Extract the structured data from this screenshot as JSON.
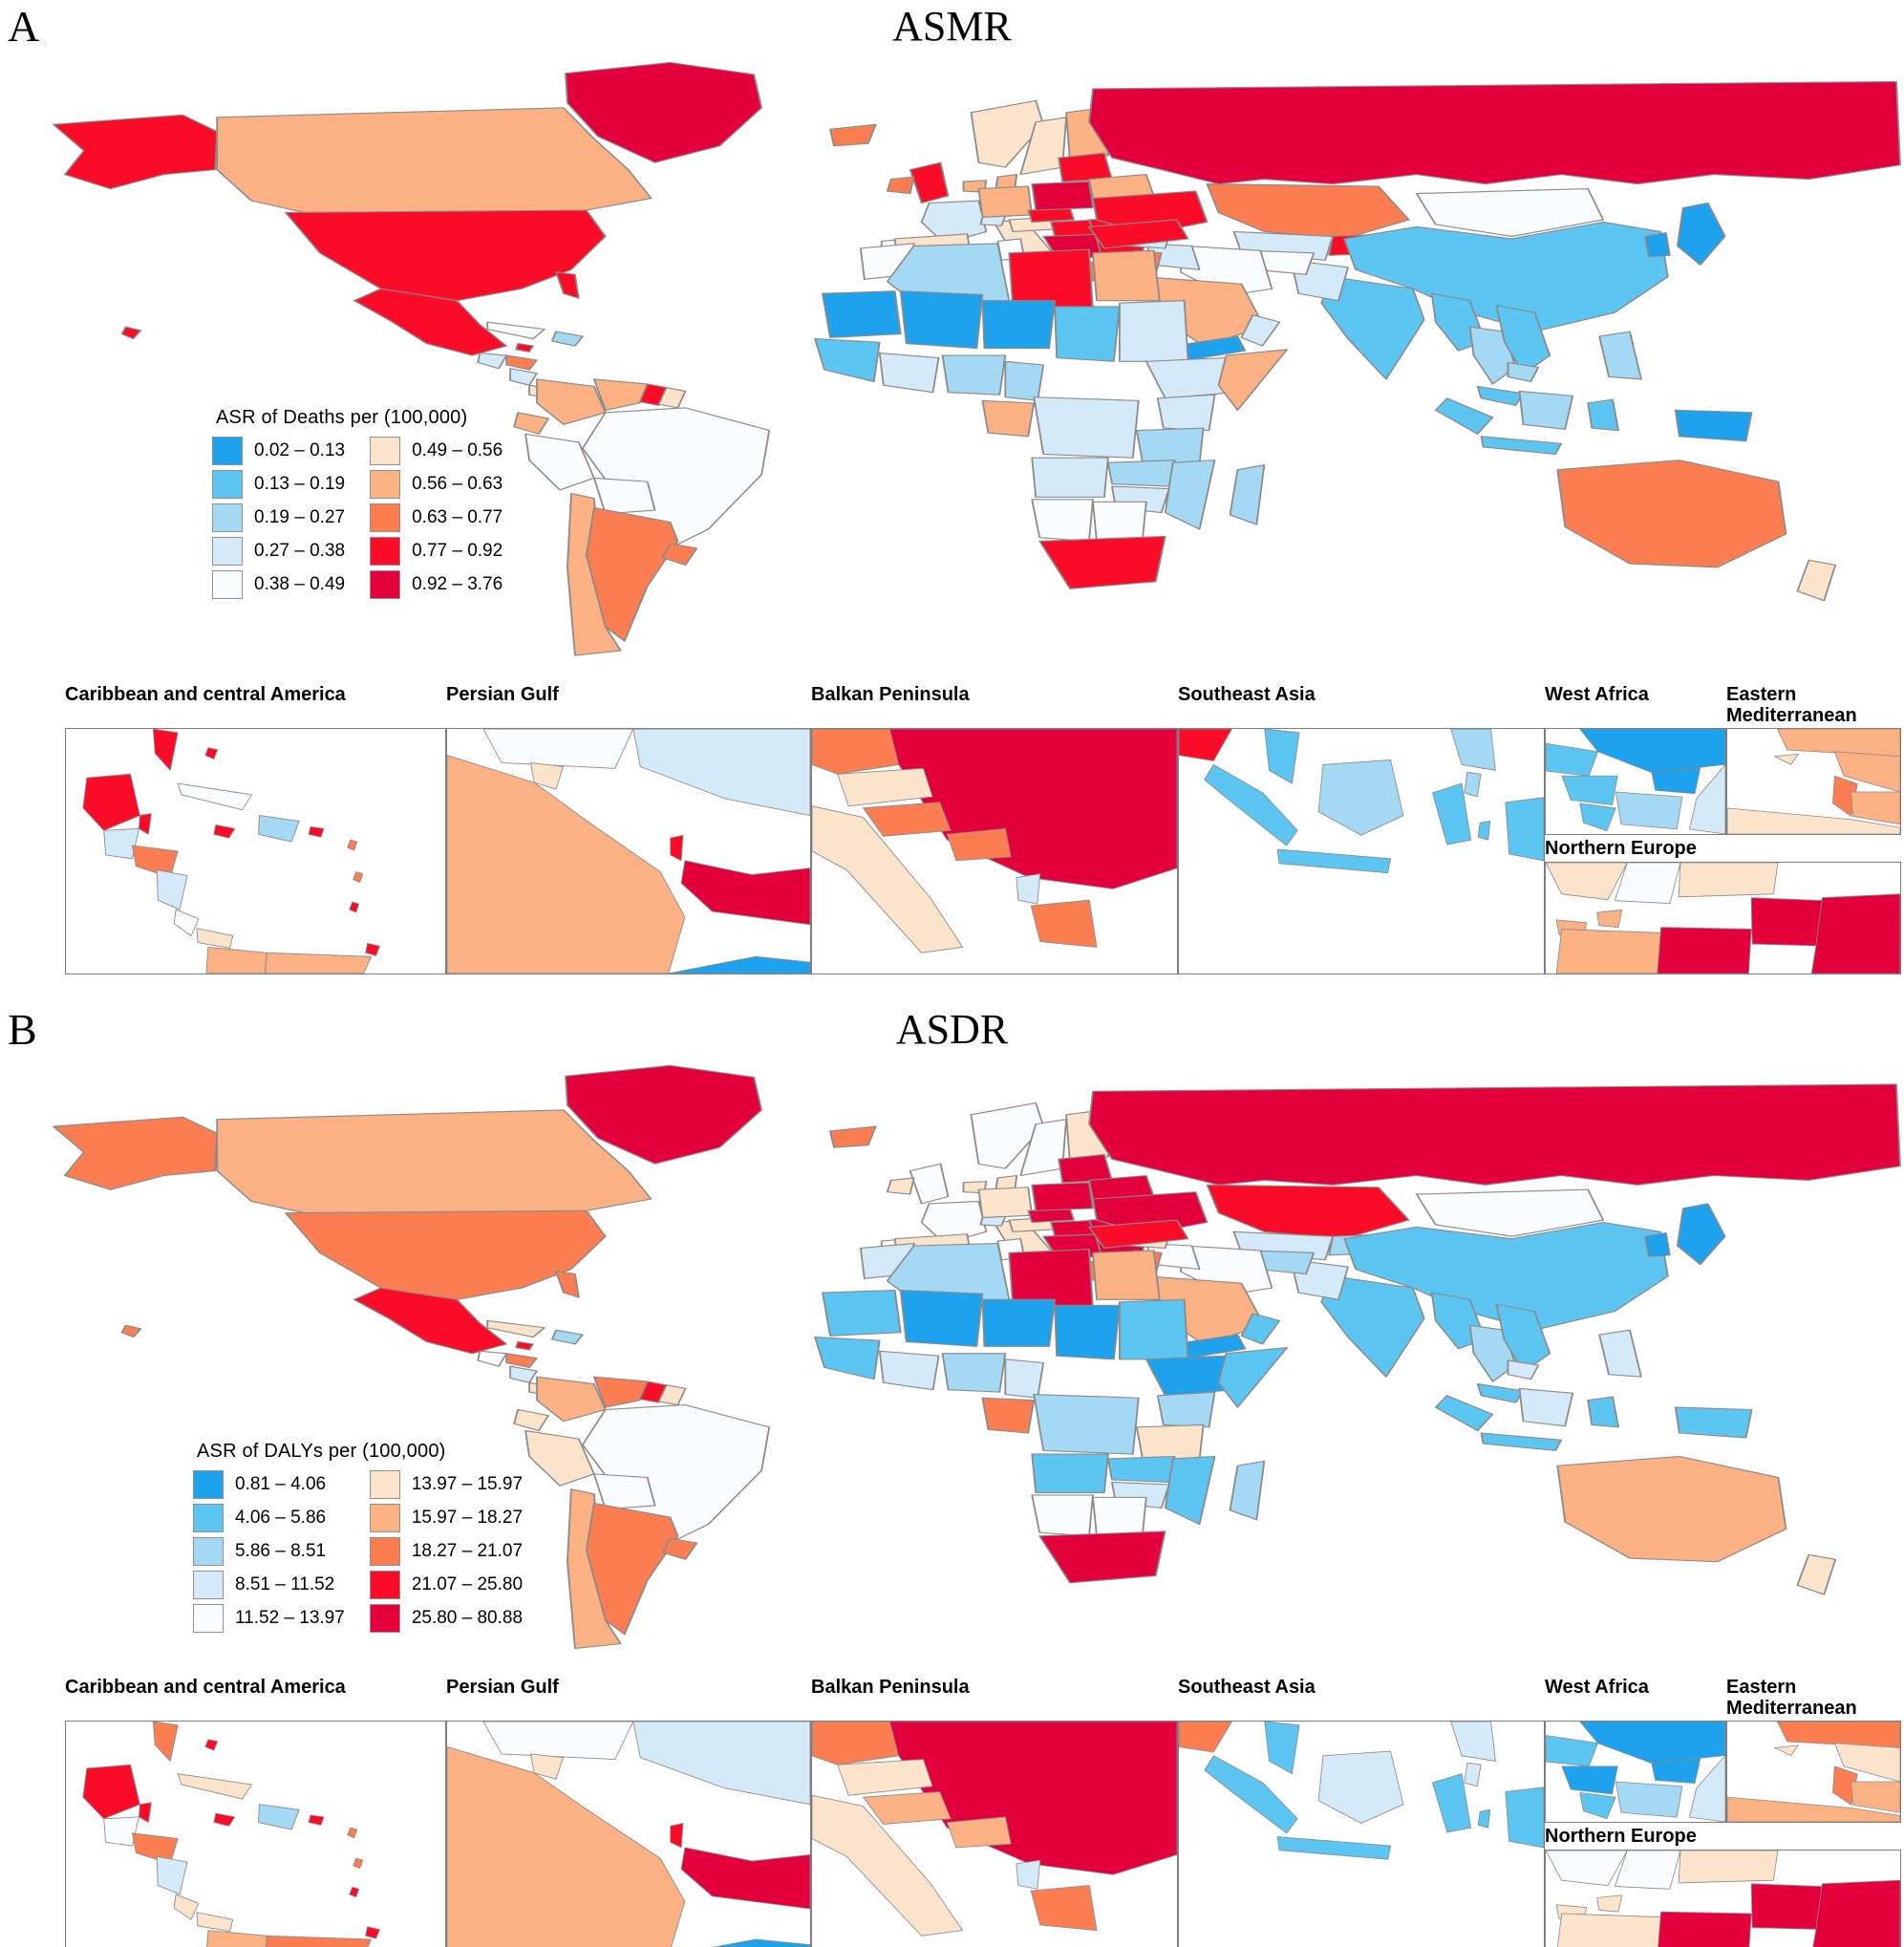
{
  "palette": [
    "#1EA2EE",
    "#5CC5F2",
    "#A5D8F3",
    "#D5EAF8",
    "#FBFCFD",
    "#FBE3CC",
    "#FBB183",
    "#FB7E52",
    "#FA0B27",
    "#E4003C"
  ],
  "map_border_color": "#8a8a8a",
  "panels": [
    {
      "letter": "A",
      "title": "ASMR",
      "legend": {
        "title": "ASR of Deaths per (100,000)",
        "left_items": [
          {
            "range": "0.02 – 0.13",
            "bucket": 1
          },
          {
            "range": "0.13 – 0.19",
            "bucket": 2
          },
          {
            "range": "0.19 – 0.27",
            "bucket": 3
          },
          {
            "range": "0.27 – 0.38",
            "bucket": 4
          },
          {
            "range": "0.38 – 0.49",
            "bucket": 5
          }
        ],
        "right_items": [
          {
            "range": "0.49 – 0.56",
            "bucket": 6
          },
          {
            "range": "0.56 – 0.63",
            "bucket": 7
          },
          {
            "range": "0.63 – 0.77",
            "bucket": 8
          },
          {
            "range": "0.77 – 0.92",
            "bucket": 9
          },
          {
            "range": "0.92 – 3.76",
            "bucket": 10
          }
        ]
      },
      "map_regions": {
        "greenland": 10,
        "alaska": 9,
        "canada": 7,
        "usa": 9,
        "florida": 9,
        "hawaii": 9,
        "mexico": 9,
        "guatemala": 4,
        "honduras": 8,
        "nicaragua": 4,
        "costarica_panama": 6,
        "cuba": 5,
        "hispaniola": 3,
        "jamaica": 9,
        "colombia": 7,
        "venezuela": 7,
        "guyana": 9,
        "suriname": 6,
        "ecuador": 7,
        "peru": 5,
        "brazil": 5,
        "bolivia": 5,
        "paraguay": 5,
        "chile": 7,
        "argentina": 8,
        "uruguay": 8,
        "iceland": 8,
        "uk": 9,
        "ireland": 8,
        "norway": 6,
        "sweden": 6,
        "finland": 7,
        "denmark": 7,
        "germany": 7,
        "netherlands": 7,
        "france": 4,
        "spain": 6,
        "portugal": 5,
        "italy": 6,
        "switzerland": 4,
        "austria": 6,
        "czech": 9,
        "poland": 10,
        "hungary_slovakia": 9,
        "balkans_serbia": 10,
        "albania": 4,
        "greece": 8,
        "romania": 9,
        "bulgaria": 9,
        "baltics": 9,
        "belarus": 7,
        "ukraine": 9,
        "russia": 10,
        "kazakhstan": 8,
        "centralasia": 4,
        "kyrgyz_tajik": 9,
        "mongolia": 5,
        "china": 2,
        "japan": 1,
        "korea": 1,
        "india": 2,
        "pakistan": 4,
        "afghanistan": 5,
        "iran": 5,
        "iraq": 4,
        "syria": 4,
        "turkey": 9,
        "saudi": 7,
        "yemen": 1,
        "oman": 4,
        "israel_jordan": 8,
        "myanmar": 2,
        "thailand": 3,
        "laos_vietnam": 2,
        "cambodia": 3,
        "malaysia": 2,
        "sumatra": 2,
        "java": 2,
        "borneo": 3,
        "sulawesi": 2,
        "philippines": 3,
        "png": 1,
        "australia": 8,
        "nz": 6,
        "morocco": 5,
        "algeria": 3,
        "tunisia": 5,
        "libya": 9,
        "egypt": 7,
        "mauritania": 1,
        "mali": 1,
        "niger": 1,
        "chad": 2,
        "sudan": 4,
        "senegal_guinea": 2,
        "ivory_ghana": 4,
        "nigeria": 3,
        "cameroon": 3,
        "ethiopia": 4,
        "somalia": 7,
        "kenya": 4,
        "tanzania": 3,
        "drc": 4,
        "gabon_congo": 7,
        "angola": 4,
        "zambia": 3,
        "zimbabwe": 4,
        "mozambique": 3,
        "namibia": 5,
        "botswana": 5,
        "southafrica": 9,
        "madagascar": 3
      },
      "insets": [
        {
          "key": "caribbean",
          "label": "Caribbean and central America",
          "regions": {
            "florida": 9,
            "bahamas": 9,
            "yucatan": 9,
            "belize": 9,
            "guatemala": 4,
            "honduras": 8,
            "nicaragua": 4,
            "costarica": 5,
            "panama": 6,
            "cuba": 5,
            "jamaica": 9,
            "hispaniola": 3,
            "puertorico": 9,
            "antilles": 8,
            "antilles2": 8,
            "antilles3": 9,
            "trinidad": 9,
            "venezuela": 7,
            "colombia": 7
          }
        },
        {
          "key": "persian_gulf",
          "label": "Persian Gulf",
          "regions": {
            "iraq": 5,
            "kuwait": 6,
            "iran": 4,
            "saudi": 7,
            "qatar": 9,
            "uae": 10,
            "yemen_strip": 1
          }
        },
        {
          "key": "balkan",
          "label": "Balkan Peninsula",
          "regions": {
            "italy": 6,
            "topleft_hungary": 8,
            "crimson_mass": 10,
            "austria": 6,
            "slovenia_croatia": 8,
            "bosnia": 8,
            "albania": 4,
            "greece": 8
          }
        },
        {
          "key": "seasia",
          "label": "Southeast Asia",
          "regions": {
            "mainland_corner": 9,
            "malay": 2,
            "sumatra": 2,
            "java": 2,
            "borneo": 3,
            "sulawesi": 2,
            "philippines": 3,
            "phil_south": 3,
            "papua": 2,
            "moluccas": 2
          }
        },
        {
          "key": "westafrica",
          "label": "West Africa",
          "regions": {
            "mali": 1,
            "senegal": 2,
            "guinea": 2,
            "burkina": 1,
            "ivory_ghana": 3,
            "liberia": 2,
            "right_sliver": 4
          }
        },
        {
          "key": "eastmed",
          "label": "Eastern Mediterranean",
          "regions": {
            "turkey_strip": 7,
            "cyprus": 6,
            "syria": 7,
            "israel_strip": 8,
            "jordan": 7,
            "egypt_strip": 6
          }
        },
        {
          "key": "neurope",
          "label": "Northern Europe",
          "regions": {
            "norway": 6,
            "sweden": 5,
            "finland_strip": 6,
            "denmark": 7,
            "netherlands": 7,
            "germany": 7,
            "poland": 10,
            "baltics": 10,
            "east_right": 10
          }
        }
      ]
    },
    {
      "letter": "B",
      "title": "ASDR",
      "legend": {
        "title": "ASR of DALYs per (100,000)",
        "left_items": [
          {
            "range": "0.81 – 4.06",
            "bucket": 1
          },
          {
            "range": "4.06 – 5.86",
            "bucket": 2
          },
          {
            "range": "5.86 – 8.51",
            "bucket": 3
          },
          {
            "range": "8.51 – 11.52",
            "bucket": 4
          },
          {
            "range": "11.52 – 13.97",
            "bucket": 5
          }
        ],
        "right_items": [
          {
            "range": "13.97 – 15.97",
            "bucket": 6
          },
          {
            "range": "15.97 – 18.27",
            "bucket": 7
          },
          {
            "range": "18.27 – 21.07",
            "bucket": 8
          },
          {
            "range": "21.07 – 25.80",
            "bucket": 9
          },
          {
            "range": "25.80 – 80.88",
            "bucket": 10
          }
        ]
      },
      "map_regions": {
        "greenland": 10,
        "alaska": 8,
        "canada": 7,
        "usa": 8,
        "florida": 8,
        "hawaii": 8,
        "mexico": 9,
        "guatemala": 5,
        "honduras": 8,
        "nicaragua": 4,
        "costarica_panama": 6,
        "cuba": 6,
        "hispaniola": 3,
        "jamaica": 9,
        "colombia": 7,
        "venezuela": 8,
        "guyana": 9,
        "suriname": 6,
        "ecuador": 6,
        "peru": 6,
        "brazil": 5,
        "bolivia": 5,
        "paraguay": 6,
        "chile": 7,
        "argentina": 8,
        "uruguay": 8,
        "iceland": 8,
        "uk": 5,
        "ireland": 6,
        "norway": 5,
        "sweden": 5,
        "finland": 6,
        "denmark": 6,
        "germany": 6,
        "netherlands": 6,
        "france": 5,
        "spain": 6,
        "portugal": 5,
        "italy": 6,
        "switzerland": 4,
        "austria": 6,
        "czech": 10,
        "poland": 10,
        "hungary_slovakia": 10,
        "balkans_serbia": 10,
        "albania": 4,
        "greece": 8,
        "romania": 10,
        "bulgaria": 10,
        "baltics": 10,
        "belarus": 10,
        "ukraine": 10,
        "russia": 10,
        "kazakhstan": 9,
        "centralasia": 4,
        "kyrgyz_tajik": 3,
        "mongolia": 5,
        "china": 2,
        "japan": 1,
        "korea": 1,
        "india": 2,
        "pakistan": 4,
        "afghanistan": 3,
        "iran": 5,
        "iraq": 5,
        "syria": 6,
        "turkey": 9,
        "saudi": 7,
        "yemen": 1,
        "oman": 2,
        "israel_jordan": 8,
        "myanmar": 2,
        "thailand": 3,
        "laos_vietnam": 2,
        "cambodia": 4,
        "malaysia": 2,
        "sumatra": 2,
        "java": 2,
        "borneo": 4,
        "sulawesi": 2,
        "philippines": 4,
        "png": 2,
        "australia": 7,
        "nz": 6,
        "morocco": 4,
        "algeria": 3,
        "tunisia": 5,
        "libya": 10,
        "egypt": 7,
        "mauritania": 2,
        "mali": 1,
        "niger": 1,
        "chad": 1,
        "sudan": 2,
        "senegal_guinea": 2,
        "ivory_ghana": 4,
        "nigeria": 3,
        "cameroon": 4,
        "ethiopia": 1,
        "somalia": 2,
        "kenya": 3,
        "tanzania": 6,
        "drc": 3,
        "gabon_congo": 8,
        "angola": 2,
        "zambia": 2,
        "zimbabwe": 4,
        "mozambique": 2,
        "namibia": 5,
        "botswana": 5,
        "southafrica": 10,
        "madagascar": 3
      },
      "insets": [
        {
          "key": "caribbean",
          "label": "Caribbean and central America",
          "regions": {
            "florida": 8,
            "bahamas": 9,
            "yucatan": 9,
            "belize": 9,
            "guatemala": 5,
            "honduras": 8,
            "nicaragua": 4,
            "costarica": 6,
            "panama": 6,
            "cuba": 6,
            "jamaica": 9,
            "hispaniola": 3,
            "puertorico": 9,
            "antilles": 8,
            "antilles2": 8,
            "antilles3": 9,
            "trinidad": 9,
            "venezuela": 8,
            "colombia": 7
          }
        },
        {
          "key": "persian_gulf",
          "label": "Persian Gulf",
          "regions": {
            "iraq": 5,
            "kuwait": 6,
            "iran": 4,
            "saudi": 7,
            "qatar": 9,
            "uae": 10,
            "yemen_strip": 1
          }
        },
        {
          "key": "balkan",
          "label": "Balkan Peninsula",
          "regions": {
            "italy": 6,
            "topleft_hungary": 8,
            "crimson_mass": 10,
            "austria": 6,
            "slovenia_croatia": 7,
            "bosnia": 7,
            "albania": 4,
            "greece": 8
          }
        },
        {
          "key": "seasia",
          "label": "Southeast Asia",
          "regions": {
            "mainland_corner": 8,
            "malay": 2,
            "sumatra": 2,
            "java": 2,
            "borneo": 4,
            "sulawesi": 2,
            "philippines": 4,
            "phil_south": 4,
            "papua": 2,
            "moluccas": 2
          }
        },
        {
          "key": "westafrica",
          "label": "West Africa",
          "regions": {
            "mali": 1,
            "senegal": 2,
            "guinea": 1,
            "burkina": 1,
            "ivory_ghana": 3,
            "liberia": 2,
            "right_sliver": 4
          }
        },
        {
          "key": "eastmed",
          "label": "Eastern Mediterranean",
          "regions": {
            "turkey_strip": 8,
            "cyprus": 6,
            "syria": 6,
            "israel_strip": 8,
            "jordan": 7,
            "egypt_strip": 7
          }
        },
        {
          "key": "neurope",
          "label": "Northern Europe",
          "regions": {
            "norway": 5,
            "sweden": 5,
            "finland_strip": 6,
            "denmark": 6,
            "netherlands": 6,
            "germany": 6,
            "poland": 10,
            "baltics": 10,
            "east_right": 10
          }
        }
      ]
    }
  ]
}
